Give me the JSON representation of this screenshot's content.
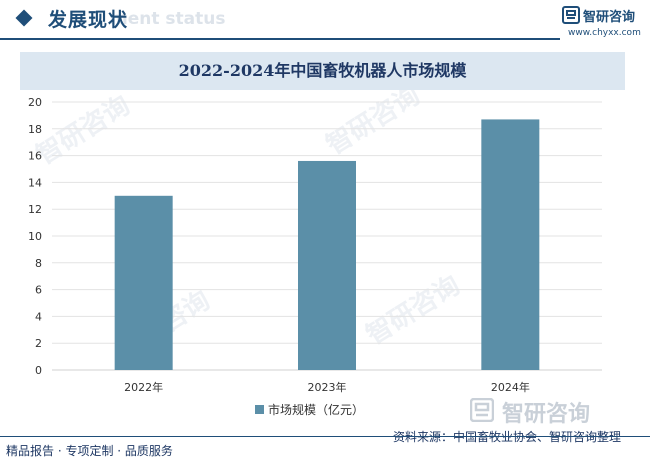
{
  "header": {
    "section_title": "发展现状",
    "section_title_ghost": "ment status",
    "brand_name": "智研咨询",
    "brand_url": "www.chyxx.com"
  },
  "watermark_text": "智研咨询",
  "footer": {
    "left": "精品报告 · 专项定制 · 品质服务",
    "source": "资料来源：中国畜牧业协会、智研咨询整理"
  },
  "colors": {
    "bar": "#5b8fa8",
    "title_bar": "#dce7f1",
    "brand": "#1f4e79"
  },
  "chart_data": {
    "type": "bar",
    "title": "2022-2024年中国畜牧机器人市场规模",
    "categories": [
      "2022年",
      "2023年",
      "2024年"
    ],
    "series": [
      {
        "name": "市场规模（亿元）",
        "values": [
          13.0,
          15.6,
          18.7
        ]
      }
    ],
    "xlabel": "",
    "ylabel": "",
    "ylim": [
      0,
      20
    ],
    "yticks": [
      0,
      2,
      4,
      6,
      8,
      10,
      12,
      14,
      16,
      18,
      20
    ],
    "grid": true,
    "legend": "bottom"
  }
}
